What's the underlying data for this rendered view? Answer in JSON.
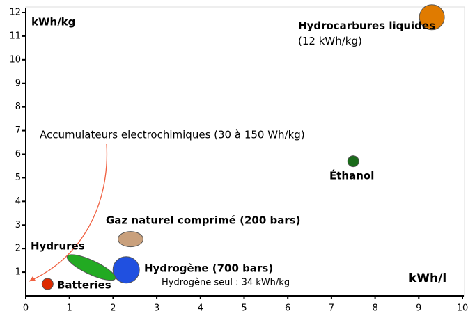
{
  "chart_data": {
    "type": "scatter",
    "x_label": "kWh/l",
    "y_label": "kWh/kg",
    "xlim": [
      0,
      10
    ],
    "xticks": [
      0,
      1,
      2,
      3,
      4,
      5,
      6,
      7,
      8,
      9,
      10
    ],
    "ylim": [
      0,
      12
    ],
    "yticks": [
      1,
      2,
      3,
      4,
      5,
      6,
      7,
      8,
      9,
      10,
      11,
      12
    ],
    "points": [
      {
        "name": "Hydrocarbures liquides",
        "note": "(12 kWh/kg)",
        "x": 9.3,
        "y": 11.8,
        "color": "#e07b00"
      },
      {
        "name": "Éthanol",
        "x": 7.5,
        "y": 5.7,
        "color": "#1a6b1a"
      },
      {
        "name": "Gaz naturel comprimé (200 bars)",
        "x": 2.4,
        "y": 2.4,
        "color": "#c9a07c"
      },
      {
        "name": "Hydrogène (700 bars)",
        "note": "Hydrogène seul : 34 kWh/kg",
        "x": 2.3,
        "y": 1.1,
        "color": "#2050e0"
      },
      {
        "name": "Hydrures",
        "x": 1.5,
        "y": 1.2,
        "color": "#22aa22"
      },
      {
        "name": "Batteries",
        "x": 0.5,
        "y": 0.5,
        "color": "#dd2a00"
      }
    ],
    "annotations": [
      "Accumulateurs electrochimiques (30 à 150 Wh/kg)"
    ]
  }
}
